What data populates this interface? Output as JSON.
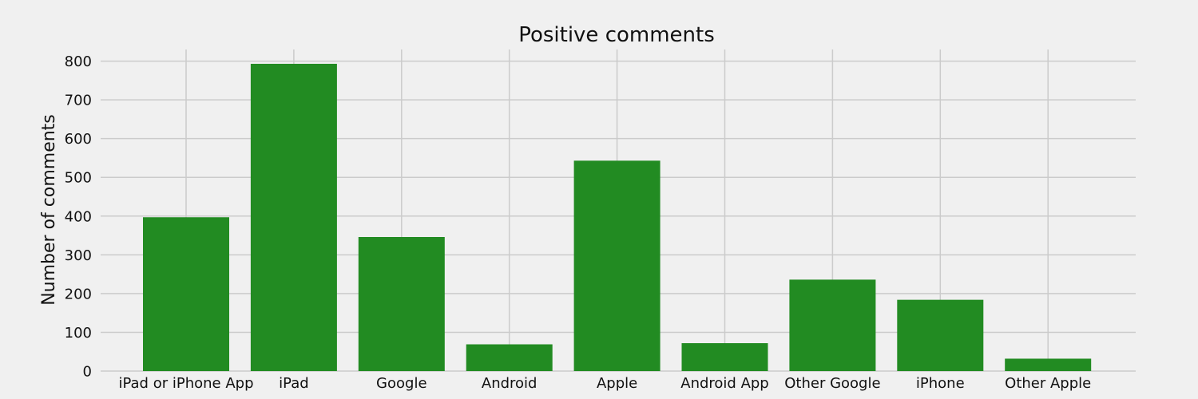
{
  "chart_data": {
    "type": "bar",
    "title": "Positive comments",
    "xlabel": "",
    "ylabel": "Number of comments",
    "categories": [
      "iPad or iPhone App",
      "iPad",
      "Google",
      "Android",
      "Apple",
      "Android App",
      "Other Google",
      "iPhone",
      "Other Apple"
    ],
    "values": [
      397,
      793,
      346,
      69,
      543,
      72,
      236,
      184,
      32
    ],
    "ylim": [
      0,
      830
    ],
    "yticks": [
      0,
      100,
      200,
      300,
      400,
      500,
      600,
      700,
      800
    ],
    "bar_color": "#228b22",
    "background_color": "#f0f0f0",
    "grid": true
  }
}
